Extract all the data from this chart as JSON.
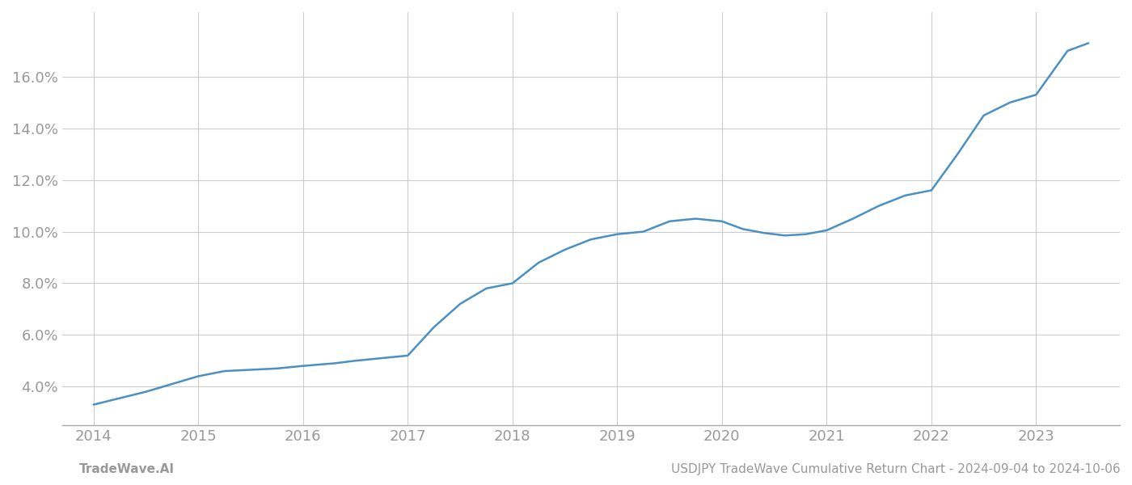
{
  "title": "USDJPY TradeWave Cumulative Return Chart - 2024-09-04 to 2024-10-06",
  "footer_left": "TradeWave.AI",
  "footer_right": "USDJPY TradeWave Cumulative Return Chart - 2024-09-04 to 2024-10-06",
  "line_color": "#4a90c4",
  "background_color": "#ffffff",
  "grid_color": "#cccccc",
  "x_values": [
    2014.0,
    2014.2,
    2014.5,
    2014.75,
    2015.0,
    2015.25,
    2015.5,
    2015.75,
    2016.0,
    2016.15,
    2016.3,
    2016.5,
    2016.75,
    2017.0,
    2017.25,
    2017.5,
    2017.75,
    2018.0,
    2018.25,
    2018.5,
    2018.75,
    2019.0,
    2019.25,
    2019.5,
    2019.75,
    2020.0,
    2020.2,
    2020.4,
    2020.6,
    2020.8,
    2021.0,
    2021.25,
    2021.5,
    2021.75,
    2022.0,
    2022.25,
    2022.5,
    2022.75,
    2023.0,
    2023.3,
    2023.5
  ],
  "y_values": [
    3.3,
    3.5,
    3.8,
    4.1,
    4.4,
    4.6,
    4.65,
    4.7,
    4.8,
    4.85,
    4.9,
    5.0,
    5.1,
    5.2,
    6.3,
    7.2,
    7.8,
    8.0,
    8.8,
    9.3,
    9.7,
    9.9,
    10.0,
    10.4,
    10.5,
    10.4,
    10.1,
    9.95,
    9.85,
    9.9,
    10.05,
    10.5,
    11.0,
    11.4,
    11.6,
    13.0,
    14.5,
    15.0,
    15.3,
    17.0,
    17.3
  ],
  "xlim": [
    2013.7,
    2023.8
  ],
  "ylim": [
    2.5,
    18.5
  ],
  "yticks": [
    4.0,
    6.0,
    8.0,
    10.0,
    12.0,
    14.0,
    16.0
  ],
  "xticks": [
    2014,
    2015,
    2016,
    2017,
    2018,
    2019,
    2020,
    2021,
    2022,
    2023
  ],
  "axis_color": "#aaaaaa",
  "tick_color": "#999999",
  "tick_fontsize": 13,
  "footer_fontsize": 11,
  "line_width": 1.8
}
